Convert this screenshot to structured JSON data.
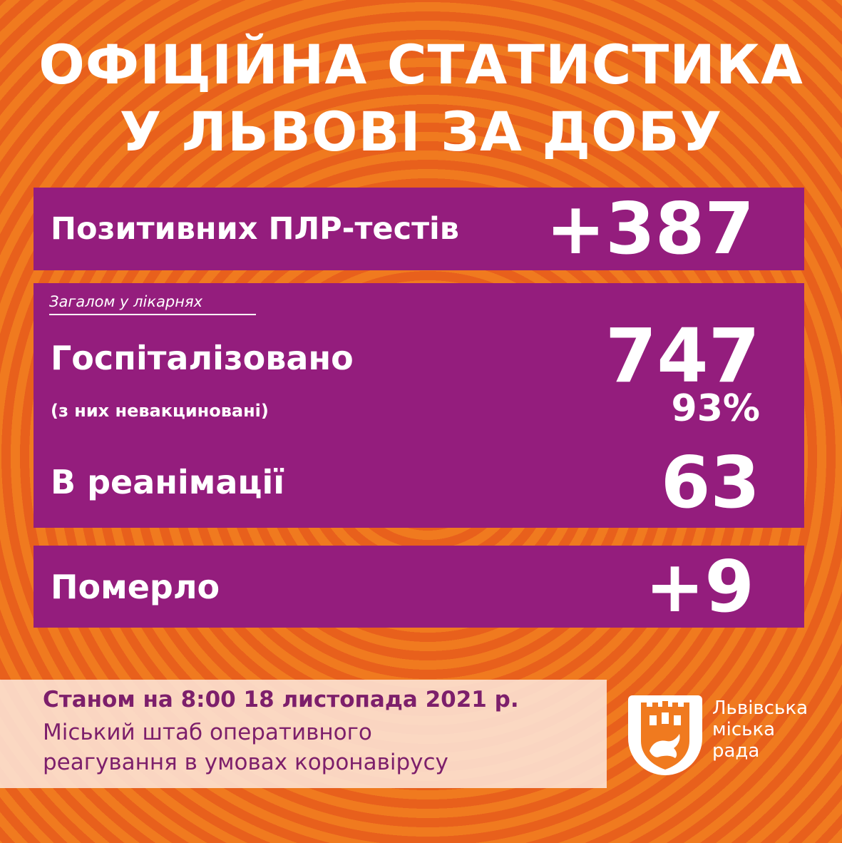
{
  "title": {
    "line1": "ОФІЦІЙНА СТАТИСТИКА",
    "line2": "У ЛЬВОВІ ЗА ДОБУ"
  },
  "tests": {
    "label": "Позитивних ПЛР-тестів",
    "value": "+387"
  },
  "hospital": {
    "caption": "Загалом у лікарнях",
    "label": "Госпіталізовано",
    "value": "747",
    "unvaccinated_label": "(з них невакциновані)",
    "unvaccinated_value": "93%",
    "icu_label": "В реанімації",
    "icu_value": "63"
  },
  "deaths": {
    "label": "Померло",
    "value": "+9"
  },
  "footer": {
    "date": "Станом на 8:00 18 листопада 2021 р.",
    "org_line1": "Міський штаб оперативного",
    "org_line2": "реагування в умовах коронавірусу"
  },
  "logo": {
    "line1": "Львівська",
    "line2": "міська",
    "line3": "рада",
    "icon": "lviv-coat-of-arms-icon"
  },
  "colors": {
    "background": "#f07a1f",
    "panel": "#941d7d",
    "footer_text": "#7d1f6b"
  }
}
